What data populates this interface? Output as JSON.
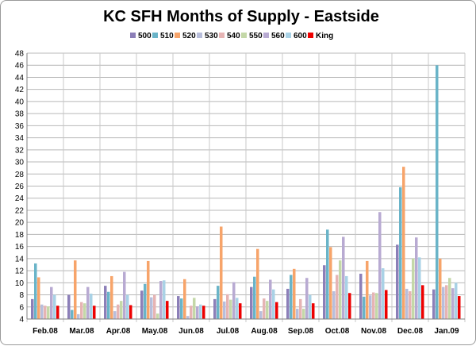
{
  "chart_data": {
    "type": "bar",
    "title": "KC SFH Months of Supply - Eastside",
    "xlabel": "",
    "ylabel": "",
    "ylim": [
      4,
      48
    ],
    "ytick_step": 2,
    "grid": "horizontal-minor",
    "legend_position": "top",
    "categories": [
      "Feb.08",
      "Mar.08",
      "Apr.08",
      "May.08",
      "Jun.08",
      "Jul.08",
      "Aug.08",
      "Sep.08",
      "Oct.08",
      "Nov.08",
      "Dec.08",
      "Jan.09"
    ],
    "series": [
      {
        "name": "500",
        "color": "#8c7fb8",
        "values": [
          7.3,
          8.0,
          9.5,
          8.7,
          7.8,
          7.3,
          9.3,
          9.0,
          12.9,
          11.5,
          16.3,
          8.9
        ]
      },
      {
        "name": "510",
        "color": "#6ab4c8",
        "values": [
          13.2,
          5.5,
          8.5,
          9.8,
          7.4,
          9.5,
          11.0,
          11.3,
          18.8,
          7.7,
          25.8,
          46.0
        ]
      },
      {
        "name": "520",
        "color": "#f7a46a",
        "values": [
          10.9,
          13.7,
          11.1,
          13.6,
          10.6,
          19.3,
          15.6,
          12.3,
          15.9,
          13.6,
          29.2,
          14.0
        ]
      },
      {
        "name": "530",
        "color": "#b8bedb",
        "values": [
          6.4,
          4.8,
          5.3,
          7.6,
          4.5,
          6.9,
          5.3,
          5.7,
          8.6,
          7.9,
          9.0,
          9.3
        ]
      },
      {
        "name": "540",
        "color": "#e6b4b4",
        "values": [
          6.2,
          6.8,
          6.4,
          8.0,
          6.2,
          8.1,
          7.4,
          7.3,
          11.3,
          8.4,
          8.6,
          9.6
        ]
      },
      {
        "name": "550",
        "color": "#c4d8a8",
        "values": [
          6.1,
          6.6,
          7.0,
          4.9,
          7.5,
          7.2,
          7.0,
          5.7,
          13.7,
          8.3,
          14.0,
          10.8
        ]
      },
      {
        "name": "560",
        "color": "#b8aad2",
        "values": [
          9.3,
          9.3,
          11.8,
          10.3,
          6.1,
          10.1,
          10.5,
          10.8,
          17.6,
          21.7,
          17.5,
          9.1
        ]
      },
      {
        "name": "600",
        "color": "#a9d2e6",
        "values": [
          8.0,
          8.2,
          8.0,
          10.4,
          6.4,
          7.5,
          8.9,
          8.0,
          11.1,
          12.4,
          14.2,
          10.0
        ]
      },
      {
        "name": "King",
        "color": "#ee0000",
        "values": [
          6.2,
          6.2,
          6.3,
          7.0,
          6.2,
          6.6,
          6.8,
          6.6,
          8.3,
          8.8,
          9.6,
          7.8
        ]
      }
    ]
  }
}
